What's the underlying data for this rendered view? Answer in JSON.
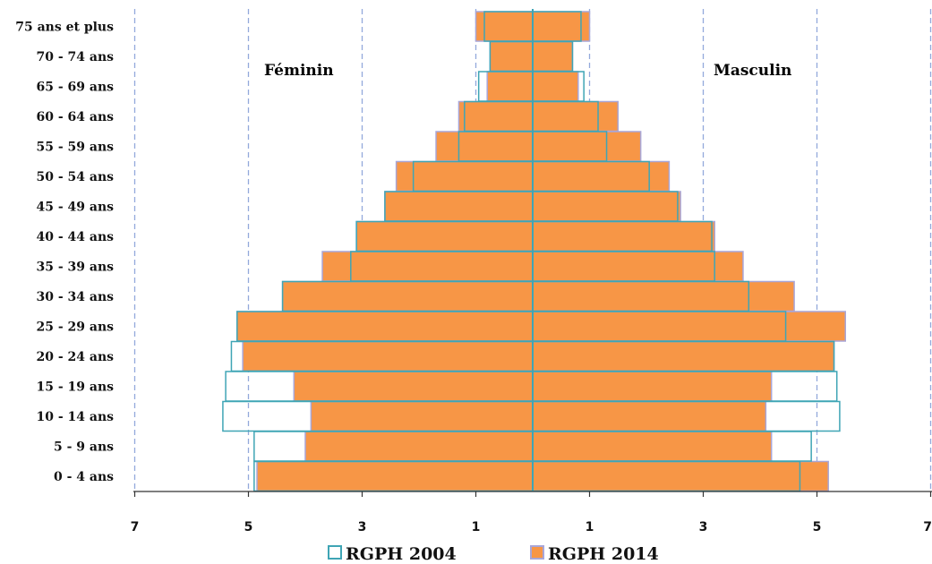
{
  "chart_data": {
    "type": "bar",
    "subtype": "population-pyramid",
    "orientation": "horizontal",
    "categories": [
      "0 - 4 ans",
      "5 - 9 ans",
      "10 - 14 ans",
      "15 - 19 ans",
      "20 - 24 ans",
      "25 - 29 ans",
      "30 - 34 ans",
      "35 - 39 ans",
      "40 - 44 ans",
      "45 - 49 ans",
      "50 - 54 ans",
      "55 - 59 ans",
      "60 - 64 ans",
      "65 - 69 ans",
      "70 - 74 ans",
      "75 ans et plus"
    ],
    "left_label": "Féminin",
    "right_label": "Masculin",
    "x_ticks": [
      "7",
      "5",
      "3",
      "1",
      "1",
      "3",
      "5",
      "7"
    ],
    "xlim": [
      -7,
      7
    ],
    "grid": "vertical dashed",
    "legend_position": "bottom",
    "series": [
      {
        "name": "RGPH 2004",
        "style": "outline",
        "color": "#3fa5b5",
        "female": [
          4.9,
          4.9,
          5.45,
          5.4,
          5.3,
          5.2,
          4.4,
          3.2,
          3.1,
          2.6,
          2.1,
          1.3,
          1.2,
          0.95,
          0.75,
          0.85
        ],
        "male": [
          4.7,
          4.9,
          5.4,
          5.35,
          5.3,
          4.45,
          3.8,
          3.2,
          3.15,
          2.55,
          2.05,
          1.3,
          1.15,
          0.9,
          0.7,
          0.85
        ]
      },
      {
        "name": "RGPH 2014",
        "style": "filled",
        "color": "#f79646",
        "border": "#a8a6d8",
        "female": [
          4.85,
          4.0,
          3.9,
          4.2,
          5.1,
          5.2,
          4.4,
          3.7,
          3.1,
          2.6,
          2.4,
          1.7,
          1.3,
          0.8,
          0.75,
          1.0
        ],
        "male": [
          5.2,
          4.2,
          4.1,
          4.2,
          5.3,
          5.5,
          4.6,
          3.7,
          3.2,
          2.6,
          2.4,
          1.9,
          1.5,
          0.8,
          0.7,
          1.0
        ]
      }
    ]
  }
}
